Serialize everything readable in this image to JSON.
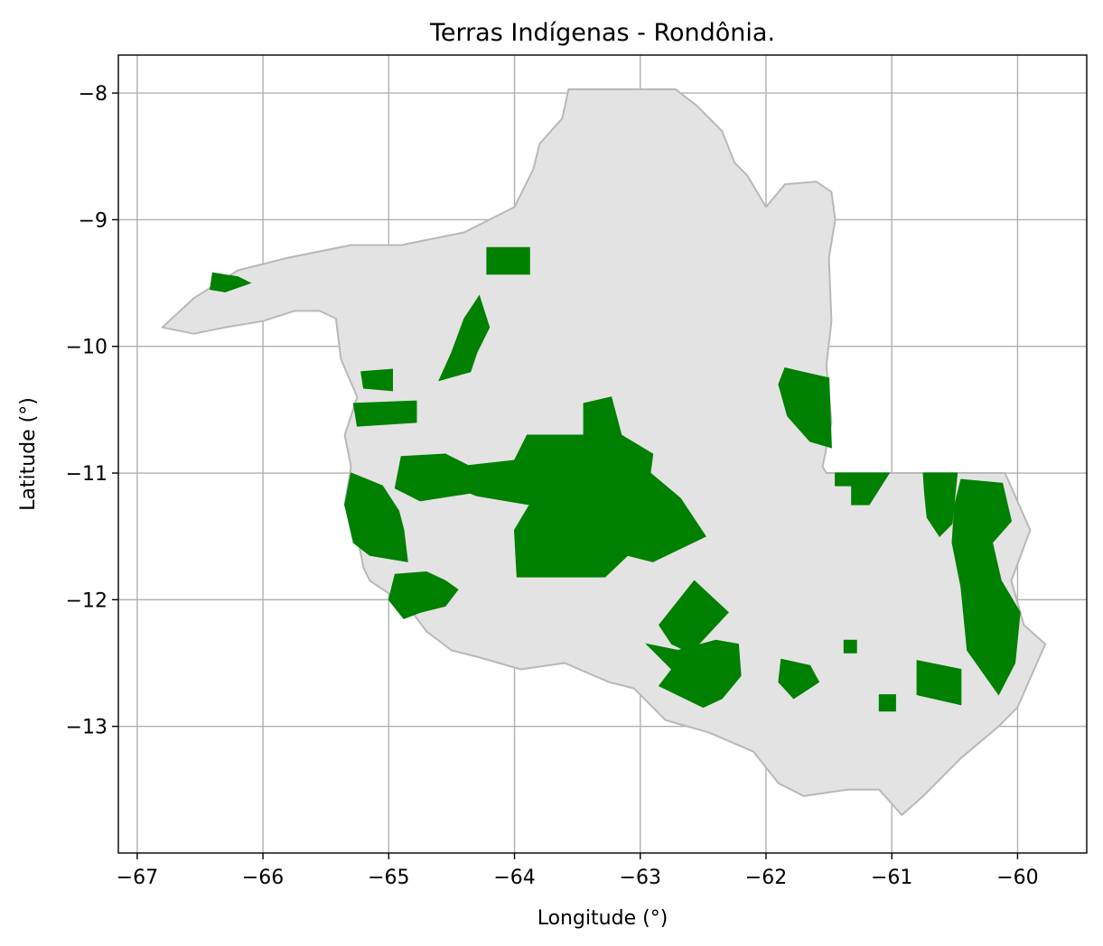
{
  "chart_data": {
    "type": "map",
    "title": "Terras Indígenas - Rondônia.",
    "xlabel": "Longitude (°)",
    "ylabel": "Latitude (°)",
    "xlim": [
      -67.15,
      -59.45
    ],
    "ylim": [
      -14.0,
      -7.7
    ],
    "x_ticks": [
      -67,
      -66,
      -65,
      -64,
      -63,
      -62,
      -61,
      -60
    ],
    "x_tick_labels": [
      "−67",
      "−66",
      "−65",
      "−64",
      "−63",
      "−62",
      "−61",
      "−60"
    ],
    "y_ticks": [
      -8,
      -9,
      -10,
      -11,
      -12,
      -13
    ],
    "y_tick_labels": [
      "−8",
      "−9",
      "−10",
      "−11",
      "−12",
      "−13"
    ],
    "grid": true,
    "colors": {
      "state_fill": "#e3e3e3",
      "state_edge": "#b8b8b8",
      "territory_fill": "#008000"
    },
    "state": {
      "name": "Rondônia",
      "outline": [
        [
          -63.57,
          -7.97
        ],
        [
          -62.72,
          -7.97
        ],
        [
          -62.55,
          -8.1
        ],
        [
          -62.35,
          -8.3
        ],
        [
          -62.25,
          -8.55
        ],
        [
          -62.15,
          -8.65
        ],
        [
          -62.0,
          -8.9
        ],
        [
          -61.85,
          -8.72
        ],
        [
          -61.6,
          -8.7
        ],
        [
          -61.48,
          -8.78
        ],
        [
          -61.45,
          -9.0
        ],
        [
          -61.5,
          -9.3
        ],
        [
          -61.48,
          -9.8
        ],
        [
          -61.52,
          -10.15
        ],
        [
          -61.48,
          -10.6
        ],
        [
          -61.55,
          -10.95
        ],
        [
          -61.52,
          -11.0
        ],
        [
          -60.4,
          -11.0
        ],
        [
          -60.1,
          -11.0
        ],
        [
          -59.9,
          -11.45
        ],
        [
          -60.05,
          -11.85
        ],
        [
          -59.95,
          -12.2
        ],
        [
          -59.78,
          -12.35
        ],
        [
          -60.0,
          -12.85
        ],
        [
          -60.15,
          -13.0
        ],
        [
          -60.45,
          -13.25
        ],
        [
          -60.75,
          -13.55
        ],
        [
          -60.92,
          -13.7
        ],
        [
          -61.1,
          -13.5
        ],
        [
          -61.35,
          -13.5
        ],
        [
          -61.7,
          -13.55
        ],
        [
          -61.9,
          -13.45
        ],
        [
          -62.1,
          -13.2
        ],
        [
          -62.45,
          -13.05
        ],
        [
          -62.8,
          -12.95
        ],
        [
          -63.05,
          -12.7
        ],
        [
          -63.25,
          -12.65
        ],
        [
          -63.6,
          -12.5
        ],
        [
          -63.95,
          -12.55
        ],
        [
          -64.3,
          -12.45
        ],
        [
          -64.5,
          -12.4
        ],
        [
          -64.7,
          -12.25
        ],
        [
          -64.85,
          -12.05
        ],
        [
          -65.0,
          -11.95
        ],
        [
          -65.15,
          -11.85
        ],
        [
          -65.2,
          -11.75
        ],
        [
          -65.25,
          -11.5
        ],
        [
          -65.35,
          -11.25
        ],
        [
          -65.3,
          -10.95
        ],
        [
          -65.35,
          -10.7
        ],
        [
          -65.25,
          -10.4
        ],
        [
          -65.38,
          -10.1
        ],
        [
          -65.42,
          -9.78
        ],
        [
          -65.55,
          -9.72
        ],
        [
          -65.75,
          -9.72
        ],
        [
          -66.0,
          -9.8
        ],
        [
          -66.3,
          -9.85
        ],
        [
          -66.55,
          -9.9
        ],
        [
          -66.8,
          -9.85
        ],
        [
          -66.55,
          -9.62
        ],
        [
          -66.2,
          -9.4
        ],
        [
          -65.8,
          -9.3
        ],
        [
          -65.3,
          -9.2
        ],
        [
          -64.9,
          -9.2
        ],
        [
          -64.4,
          -9.1
        ],
        [
          -64.0,
          -8.9
        ],
        [
          -63.85,
          -8.6
        ],
        [
          -63.8,
          -8.4
        ],
        [
          -63.62,
          -8.2
        ]
      ]
    },
    "territories": [
      {
        "polygon": [
          [
            -66.4,
            -9.42
          ],
          [
            -66.2,
            -9.45
          ],
          [
            -66.1,
            -9.5
          ],
          [
            -66.3,
            -9.57
          ],
          [
            -66.42,
            -9.55
          ]
        ]
      },
      {
        "polygon": [
          [
            -64.22,
            -9.22
          ],
          [
            -63.88,
            -9.22
          ],
          [
            -63.88,
            -9.43
          ],
          [
            -64.22,
            -9.43
          ]
        ]
      },
      {
        "polygon": [
          [
            -64.28,
            -9.6
          ],
          [
            -64.2,
            -9.85
          ],
          [
            -64.3,
            -10.05
          ],
          [
            -64.35,
            -10.2
          ],
          [
            -64.6,
            -10.27
          ],
          [
            -64.5,
            -10.05
          ],
          [
            -64.4,
            -9.78
          ]
        ]
      },
      {
        "polygon": [
          [
            -65.22,
            -10.2
          ],
          [
            -64.97,
            -10.18
          ],
          [
            -64.97,
            -10.35
          ],
          [
            -65.2,
            -10.33
          ]
        ]
      },
      {
        "polygon": [
          [
            -65.28,
            -10.45
          ],
          [
            -64.78,
            -10.43
          ],
          [
            -64.78,
            -10.6
          ],
          [
            -65.25,
            -10.63
          ]
        ]
      },
      {
        "polygon": [
          [
            -61.85,
            -10.17
          ],
          [
            -61.5,
            -10.25
          ],
          [
            -61.48,
            -10.8
          ],
          [
            -61.65,
            -10.75
          ],
          [
            -61.83,
            -10.55
          ],
          [
            -61.9,
            -10.3
          ]
        ]
      },
      {
        "polygon": [
          [
            -64.45,
            -10.95
          ],
          [
            -64.0,
            -10.9
          ],
          [
            -63.9,
            -10.7
          ],
          [
            -63.45,
            -10.7
          ],
          [
            -63.45,
            -10.45
          ],
          [
            -63.23,
            -10.4
          ],
          [
            -63.15,
            -10.7
          ],
          [
            -62.9,
            -10.85
          ],
          [
            -62.92,
            -11.0
          ],
          [
            -62.68,
            -11.2
          ],
          [
            -62.48,
            -11.5
          ],
          [
            -62.9,
            -11.7
          ],
          [
            -63.1,
            -11.65
          ],
          [
            -63.28,
            -11.82
          ],
          [
            -63.98,
            -11.82
          ],
          [
            -64.0,
            -11.45
          ],
          [
            -63.88,
            -11.25
          ],
          [
            -64.3,
            -11.18
          ],
          [
            -64.5,
            -11.1
          ]
        ]
      },
      {
        "polygon": [
          [
            -64.9,
            -10.87
          ],
          [
            -64.55,
            -10.85
          ],
          [
            -64.35,
            -10.95
          ],
          [
            -64.3,
            -11.15
          ],
          [
            -64.75,
            -11.22
          ],
          [
            -64.95,
            -11.12
          ]
        ]
      },
      {
        "polygon": [
          [
            -65.3,
            -11.0
          ],
          [
            -65.35,
            -11.25
          ],
          [
            -65.28,
            -11.55
          ],
          [
            -65.15,
            -11.65
          ],
          [
            -64.85,
            -11.7
          ],
          [
            -64.88,
            -11.45
          ],
          [
            -64.92,
            -11.3
          ],
          [
            -65.05,
            -11.1
          ]
        ]
      },
      {
        "polygon": [
          [
            -64.95,
            -11.8
          ],
          [
            -64.7,
            -11.78
          ],
          [
            -64.55,
            -11.85
          ],
          [
            -64.45,
            -11.92
          ],
          [
            -64.55,
            -12.05
          ],
          [
            -64.75,
            -12.1
          ],
          [
            -64.88,
            -12.15
          ],
          [
            -65.0,
            -12.0
          ]
        ]
      },
      {
        "polygon": [
          [
            -62.85,
            -12.2
          ],
          [
            -62.57,
            -11.85
          ],
          [
            -62.3,
            -12.1
          ],
          [
            -62.6,
            -12.42
          ],
          [
            -62.75,
            -12.35
          ]
        ]
      },
      {
        "polygon": [
          [
            -62.95,
            -12.35
          ],
          [
            -62.75,
            -12.55
          ],
          [
            -62.85,
            -12.68
          ],
          [
            -62.5,
            -12.85
          ],
          [
            -62.35,
            -12.78
          ],
          [
            -62.2,
            -12.6
          ],
          [
            -62.22,
            -12.35
          ],
          [
            -62.4,
            -12.32
          ],
          [
            -62.7,
            -12.4
          ]
        ]
      },
      {
        "polygon": [
          [
            -61.88,
            -12.47
          ],
          [
            -61.65,
            -12.52
          ],
          [
            -61.58,
            -12.65
          ],
          [
            -61.78,
            -12.78
          ],
          [
            -61.9,
            -12.65
          ]
        ]
      },
      {
        "polygon": [
          [
            -61.38,
            -12.32
          ],
          [
            -61.28,
            -12.32
          ],
          [
            -61.28,
            -12.42
          ],
          [
            -61.38,
            -12.42
          ]
        ]
      },
      {
        "polygon": [
          [
            -61.1,
            -12.75
          ],
          [
            -60.97,
            -12.75
          ],
          [
            -60.97,
            -12.88
          ],
          [
            -61.1,
            -12.88
          ]
        ]
      },
      {
        "polygon": [
          [
            -60.8,
            -12.48
          ],
          [
            -60.45,
            -12.55
          ],
          [
            -60.45,
            -12.83
          ],
          [
            -60.8,
            -12.75
          ]
        ]
      },
      {
        "polygon": [
          [
            -61.45,
            -11.0
          ],
          [
            -61.02,
            -11.0
          ],
          [
            -61.18,
            -11.25
          ],
          [
            -61.32,
            -11.25
          ],
          [
            -61.32,
            -11.1
          ],
          [
            -61.45,
            -11.1
          ]
        ]
      },
      {
        "polygon": [
          [
            -60.75,
            -11.0
          ],
          [
            -60.48,
            -11.0
          ],
          [
            -60.52,
            -11.4
          ],
          [
            -60.62,
            -11.5
          ],
          [
            -60.72,
            -11.35
          ],
          [
            -60.74,
            -11.15
          ]
        ]
      },
      {
        "polygon": [
          [
            -60.45,
            -11.05
          ],
          [
            -60.12,
            -11.08
          ],
          [
            -60.05,
            -11.38
          ],
          [
            -60.2,
            -11.55
          ],
          [
            -60.13,
            -11.85
          ],
          [
            -59.98,
            -12.1
          ],
          [
            -60.02,
            -12.5
          ],
          [
            -60.15,
            -12.75
          ],
          [
            -60.4,
            -12.4
          ],
          [
            -60.45,
            -11.9
          ],
          [
            -60.52,
            -11.55
          ],
          [
            -60.5,
            -11.25
          ]
        ]
      }
    ]
  }
}
